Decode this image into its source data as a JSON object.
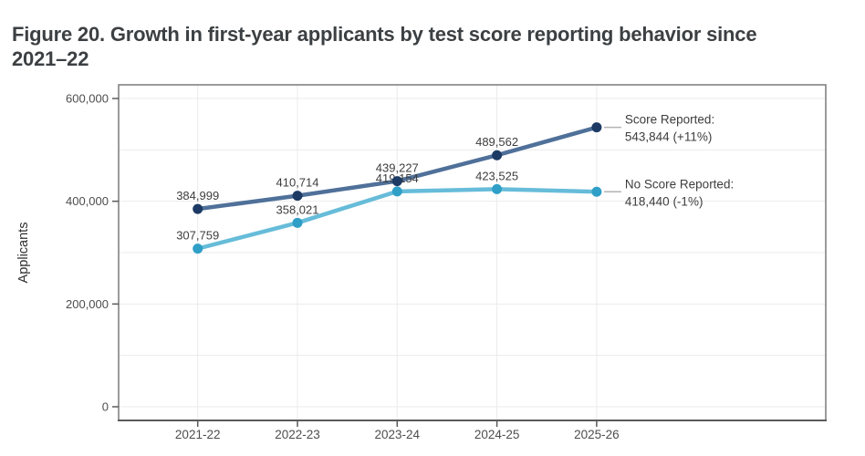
{
  "figure": {
    "title_line1": "Figure 20. Growth in first-year applicants by test score reporting behavior since",
    "title_line2": "2021–22"
  },
  "chart_data": {
    "type": "line",
    "title": "Figure 20. Growth in first-year applicants by test score reporting behavior since 2021–22",
    "xlabel": "",
    "ylabel": "Applicants",
    "categories": [
      "2021-22",
      "2022-23",
      "2023-24",
      "2024-25",
      "2025-26"
    ],
    "ylim": [
      0,
      600000
    ],
    "yticks": [
      0,
      200000,
      400000,
      600000
    ],
    "ytick_labels": [
      "0",
      "200,000",
      "400,000",
      "600,000"
    ],
    "grid": true,
    "minor_grid_step": 100000,
    "legend_position": "right-of-last-point",
    "series": [
      {
        "name": "Score Reported",
        "values": [
          384999,
          410714,
          439227,
          489562,
          543844
        ],
        "point_labels": [
          "384,999",
          "410,714",
          "439,227",
          "489,562",
          ""
        ],
        "legend_lines": [
          "Score Reported:",
          "543,844 (+11%)"
        ],
        "line_color": "#4f7099",
        "point_color": "#1c3a64"
      },
      {
        "name": "No Score Reported",
        "values": [
          307759,
          358021,
          419154,
          423525,
          418440
        ],
        "point_labels": [
          "307,759",
          "358,021",
          "419,154",
          "423,525",
          ""
        ],
        "legend_lines": [
          "No Score Reported:",
          "418,440 (-1%)"
        ],
        "line_color": "#66bcd9",
        "point_color": "#2f9fc7"
      }
    ],
    "colors": {
      "grid": "#ebebeb",
      "panel_border": "#7a7a7a",
      "axis_line": "#5a5a5a",
      "axis_text": "#4d4d4d",
      "label_text": "#3d3d3d",
      "connector": "#b3b3b3",
      "ylabel_text": "#2e2e2e",
      "title_text": "#3c4043"
    }
  }
}
